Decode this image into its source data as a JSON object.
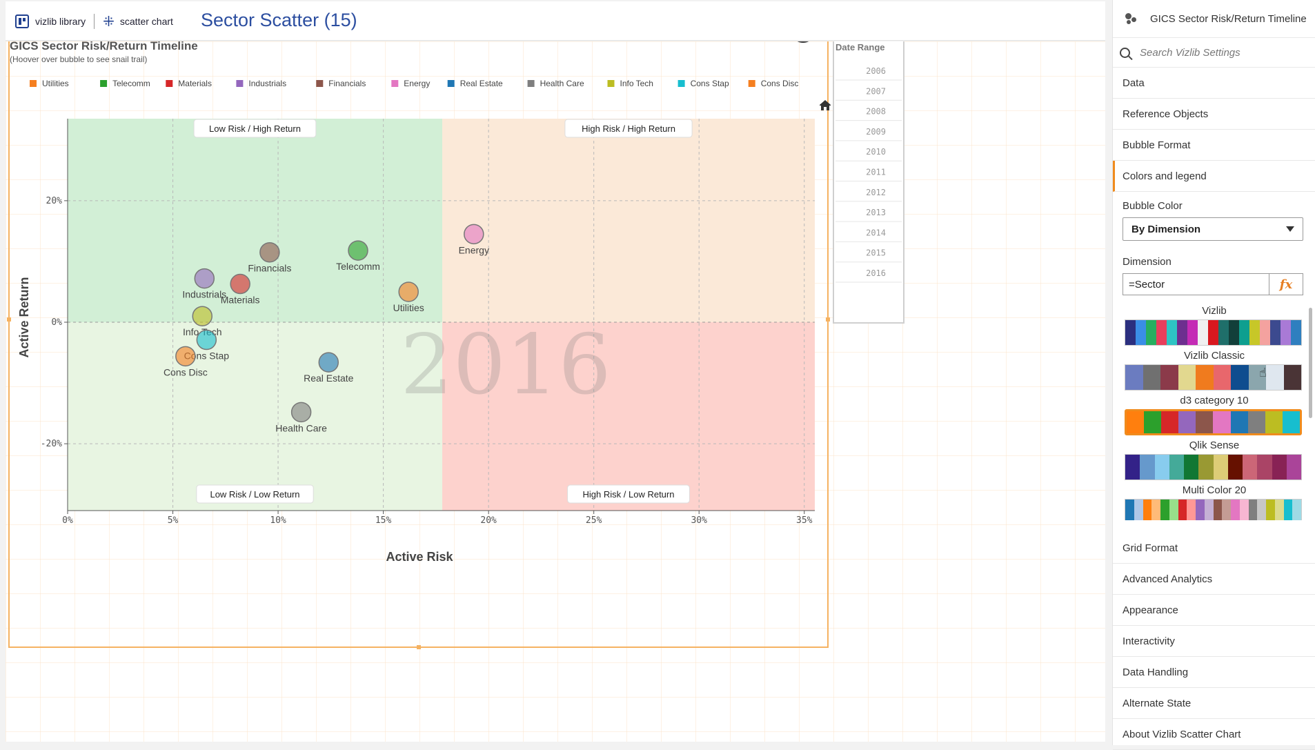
{
  "topbar": {
    "library_label": "vizlib library",
    "chart_type_label": "scatter chart",
    "chart_title": "Sector Scatter (15)"
  },
  "chart_header": {
    "title": "GICS Sector Risk/Return Timeline",
    "subtitle": "(Hoover over bubble to see snail trail)"
  },
  "legend": [
    {
      "label": "Utilities",
      "color": "#f57f20"
    },
    {
      "label": "Telecomm",
      "color": "#2ca02c"
    },
    {
      "label": "Materials",
      "color": "#d62728"
    },
    {
      "label": "Industrials",
      "color": "#9467bd"
    },
    {
      "label": "Financials",
      "color": "#8c564b"
    },
    {
      "label": "Energy",
      "color": "#e377c2"
    },
    {
      "label": "Real Estate",
      "color": "#1f77b4"
    },
    {
      "label": "Health Care",
      "color": "#7f7f7f"
    },
    {
      "label": "Info Tech",
      "color": "#bcbd22"
    },
    {
      "label": "Cons Stap",
      "color": "#17becf"
    },
    {
      "label": "Cons Disc",
      "color": "#f57f20"
    }
  ],
  "quadrants": {
    "top_left": "Low Risk / High Return",
    "top_right": "High Risk / High Return",
    "bottom_left": "Low Risk / Low Return",
    "bottom_right": "High Risk / Low Return"
  },
  "year_watermark": "2016",
  "date_range": {
    "title": "Date Range",
    "years": [
      "2006",
      "2007",
      "2008",
      "2009",
      "2010",
      "2011",
      "2012",
      "2013",
      "2014",
      "2015",
      "2016"
    ]
  },
  "chart_data": {
    "type": "scatter",
    "title": "GICS Sector Risk/Return Timeline",
    "xlabel": "Active Risk",
    "ylabel": "Active Return",
    "xlim": [
      0,
      35.5
    ],
    "ylim": [
      -31,
      33.5
    ],
    "x_ticks": [
      0,
      5,
      10,
      15,
      20,
      25,
      30,
      35
    ],
    "x_tick_labels": [
      "0%",
      "5%",
      "10%",
      "15%",
      "20%",
      "25%",
      "30%",
      "35%"
    ],
    "y_ticks": [
      -20,
      0,
      20
    ],
    "y_tick_labels": [
      "-20%",
      "0%",
      "20%"
    ],
    "quadrant_split": {
      "x": 17.8,
      "y": 0
    },
    "grid": true,
    "points": [
      {
        "label": "Energy",
        "x": 19.3,
        "y": 14.5,
        "color": "#e377c2"
      },
      {
        "label": "Financials",
        "x": 9.6,
        "y": 11.5,
        "color": "#8c564b"
      },
      {
        "label": "Telecomm",
        "x": 13.8,
        "y": 11.8,
        "color": "#2ca02c"
      },
      {
        "label": "Industrials",
        "x": 6.5,
        "y": 7.2,
        "color": "#9467bd"
      },
      {
        "label": "Materials",
        "x": 8.2,
        "y": 6.3,
        "color": "#d62728"
      },
      {
        "label": "Utilities",
        "x": 16.2,
        "y": 5.0,
        "color": "#f57f20"
      },
      {
        "label": "Info Tech",
        "x": 6.4,
        "y": 1.0,
        "color": "#bcbd22"
      },
      {
        "label": "Cons Stap",
        "x": 6.6,
        "y": -2.9,
        "color": "#17becf"
      },
      {
        "label": "Cons Disc",
        "x": 5.6,
        "y": -5.6,
        "color": "#f57f20"
      },
      {
        "label": "Real Estate",
        "x": 12.4,
        "y": -6.6,
        "color": "#1f77b4"
      },
      {
        "label": "Health Care",
        "x": 11.1,
        "y": -14.8,
        "color": "#7f7f7f"
      }
    ]
  },
  "panel": {
    "header": "GICS Sector Risk/Return Timeline",
    "search_placeholder": "Search Vizlib Settings",
    "sections_top": [
      "Data",
      "Reference Objects",
      "Bubble Format",
      "Colors and legend"
    ],
    "bubble_color_label": "Bubble Color",
    "bubble_color_value": "By Dimension",
    "dimension_label": "Dimension",
    "dimension_value": "=Sector",
    "fx_label": "fx",
    "palettes": [
      {
        "name": "Vizlib",
        "colors": [
          "#2b2f7f",
          "#3a8ee6",
          "#27ae60",
          "#e83e5c",
          "#2ec4c4",
          "#6d2f8f",
          "#c42bb5",
          "#f0f0f0",
          "#d9181f",
          "#1f6f6a",
          "#123f3a",
          "#0e9f8f",
          "#c7c728",
          "#f4a29f",
          "#3c4a8f",
          "#a97ad6",
          "#2f7fbf"
        ]
      },
      {
        "name": "Vizlib Classic",
        "colors": [
          "#6b7cc0",
          "#707070",
          "#8b3a4a",
          "#e2d88f",
          "#f07b1e",
          "#e8676c",
          "#0f4d8f",
          "#8ba6ad",
          "#dfe7ef",
          "#4a3436"
        ]
      },
      {
        "name": "d3 category 10",
        "colors": [
          "#ff7f0e",
          "#2ca02c",
          "#d62728",
          "#9467bd",
          "#8c564b",
          "#e377c2",
          "#1f77b4",
          "#7f7f7f",
          "#bcbd22",
          "#17becf"
        ]
      },
      {
        "name": "Qlik Sense",
        "colors": [
          "#332288",
          "#6699cc",
          "#88ccee",
          "#44aa99",
          "#117733",
          "#999933",
          "#ddcc77",
          "#661100",
          "#cc6677",
          "#aa4466",
          "#882255",
          "#aa4499"
        ]
      },
      {
        "name": "Multi Color 20",
        "colors": [
          "#1f77b4",
          "#aec7e8",
          "#ff7f0e",
          "#ffbb78",
          "#2ca02c",
          "#98df8a",
          "#d62728",
          "#ff9896",
          "#9467bd",
          "#c5b0d5",
          "#8c564b",
          "#c49c94",
          "#e377c2",
          "#f7b6d2",
          "#7f7f7f",
          "#c7c7c7",
          "#bcbd22",
          "#dbdb8d",
          "#17becf",
          "#9edae5"
        ]
      }
    ],
    "sections_bottom": [
      "Grid Format",
      "Advanced Analytics",
      "Appearance",
      "Interactivity",
      "Data Handling",
      "Alternate State",
      "About Vizlib Scatter Chart"
    ]
  }
}
